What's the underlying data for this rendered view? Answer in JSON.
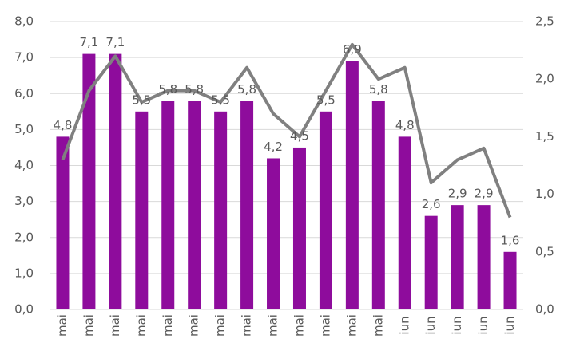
{
  "chart_data": {
    "type": "bar-line",
    "categories": [
      "mai",
      "mai",
      "mai",
      "mai",
      "mai",
      "mai",
      "mai",
      "mai",
      "mai",
      "mai",
      "mai",
      "mai",
      "mai",
      "iun",
      "iun",
      "iun",
      "iun",
      "iun"
    ],
    "series": [
      {
        "type": "bar",
        "color": "#8e0c9c",
        "values": [
          4.8,
          7.1,
          7.1,
          5.5,
          5.8,
          5.8,
          5.5,
          5.8,
          4.2,
          4.5,
          5.5,
          6.9,
          5.8,
          4.8,
          2.6,
          2.9,
          2.9,
          1.6
        ],
        "value_labels": [
          "4,8",
          "7,1",
          "7,1",
          "5,5",
          "5,8",
          "5,8",
          "5,5",
          "5,8",
          "4,2",
          "4,5",
          "5,5",
          "6,9",
          "5,8",
          "4,8",
          "2,6",
          "2,9",
          "2,9",
          "1,6"
        ]
      },
      {
        "type": "line",
        "axis": "y2",
        "color": "#808080",
        "values": [
          1.3,
          1.9,
          2.2,
          1.8,
          1.9,
          1.9,
          1.8,
          2.1,
          1.7,
          1.5,
          1.9,
          2.3,
          2.0,
          2.1,
          1.1,
          1.3,
          1.4,
          0.8
        ]
      }
    ],
    "ylim": [
      0,
      8
    ],
    "yticks": [
      {
        "value": 0,
        "label": "0,0"
      },
      {
        "value": 1,
        "label": "1,0"
      },
      {
        "value": 2,
        "label": "2,0"
      },
      {
        "value": 3,
        "label": "3,0"
      },
      {
        "value": 4,
        "label": "4,0"
      },
      {
        "value": 5,
        "label": "5,0"
      },
      {
        "value": 6,
        "label": "6,0"
      },
      {
        "value": 7,
        "label": "7,0"
      },
      {
        "value": 8,
        "label": "8,0"
      }
    ],
    "y2lim": [
      0,
      2.5
    ],
    "y2ticks": [
      {
        "value": 0,
        "label": "0,0"
      },
      {
        "value": 0.5,
        "label": "0,5"
      },
      {
        "value": 1,
        "label": "1,0"
      },
      {
        "value": 1.5,
        "label": "1,5"
      },
      {
        "value": 2,
        "label": "2,0"
      },
      {
        "value": 2.5,
        "label": "2,5"
      }
    ],
    "grid": true
  }
}
